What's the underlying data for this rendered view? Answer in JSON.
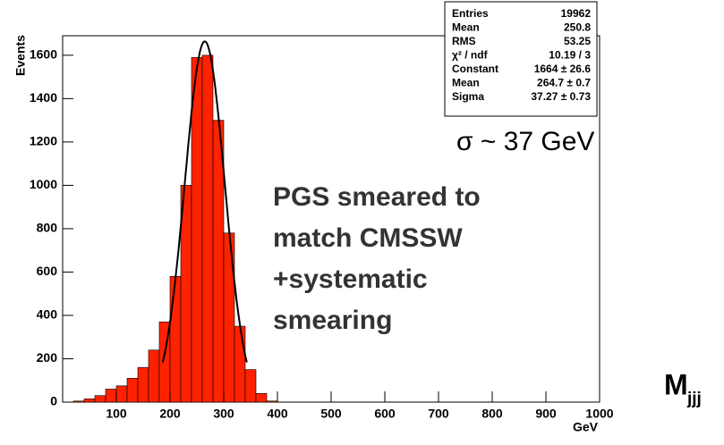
{
  "chart_data": {
    "type": "histogram",
    "x_label": "GeV",
    "y_label": "Events",
    "bins": [
      0,
      20,
      40,
      60,
      80,
      100,
      120,
      140,
      160,
      180,
      200,
      220,
      240,
      260,
      280,
      300,
      320,
      340,
      360,
      380,
      400
    ],
    "values": [
      0,
      5,
      15,
      30,
      60,
      75,
      110,
      160,
      240,
      370,
      580,
      1000,
      1590,
      1600,
      1300,
      780,
      350,
      150,
      40,
      5
    ],
    "color": "#ff2200",
    "fit": {
      "constant": 1664,
      "mean": 264.7,
      "sigma": 37.27,
      "color": "#000000"
    },
    "xlim": [
      0,
      1000
    ],
    "xticks": [
      100,
      200,
      300,
      400,
      500,
      600,
      700,
      800,
      900,
      1000
    ],
    "ylim": [
      0,
      1690
    ],
    "yticks": [
      0,
      200,
      400,
      600,
      800,
      1000,
      1200,
      1400,
      1600
    ],
    "stats": [
      [
        "Entries",
        "19962"
      ],
      [
        "Mean",
        "250.8"
      ],
      [
        "RMS",
        "53.25"
      ],
      [
        "χ² / ndf",
        "10.19 / 3"
      ],
      [
        "Constant",
        "1664 ± 26.6"
      ],
      [
        "Mean",
        "264.7 ± 0.7"
      ],
      [
        "Sigma",
        "37.27 ± 0.73"
      ]
    ],
    "annotations": {
      "sigma_note": "σ ~ 37 GeV",
      "smear_lines": [
        "PGS smeared to",
        "match CMSSW",
        "+systematic",
        "smearing"
      ],
      "mass": "M",
      "mass_sub": "jjj"
    }
  }
}
